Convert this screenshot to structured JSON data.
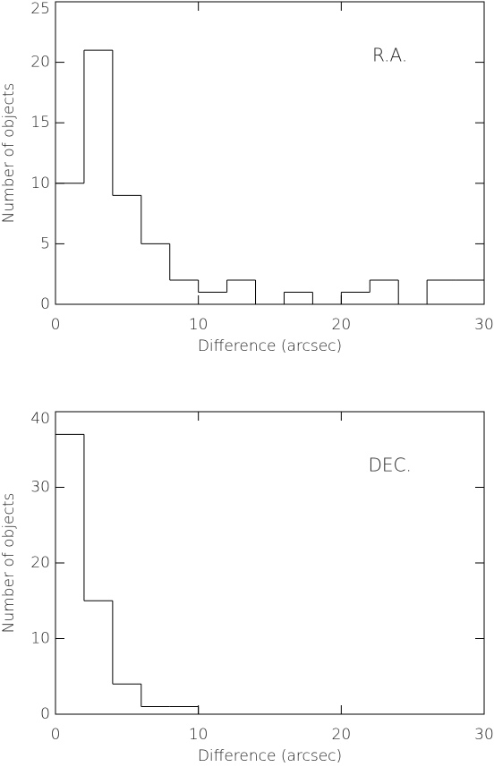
{
  "chart_data": [
    {
      "type": "histogram",
      "annotation": "R.A.",
      "xlabel": "Difference (arcsec)",
      "ylabel": "Number of objects",
      "color": "#000000",
      "bins": [
        0,
        2,
        4,
        6,
        8,
        10,
        12,
        14,
        16,
        18,
        20,
        22,
        24,
        26,
        28,
        30
      ],
      "values": [
        10,
        21,
        9,
        5,
        2,
        1,
        2,
        0,
        1,
        0,
        1,
        2,
        0,
        2,
        2
      ],
      "xlim": [
        0,
        30
      ],
      "xticks": [
        0,
        10,
        20,
        30
      ],
      "ylim": [
        0,
        25
      ],
      "yticks": [
        0,
        5,
        10,
        15,
        20,
        25
      ]
    },
    {
      "type": "histogram",
      "annotation": "DEC.",
      "xlabel": "Difference (arcsec)",
      "ylabel": "Number of objects",
      "color": "#000000",
      "bins": [
        0,
        2,
        4,
        6,
        8,
        10,
        12,
        14,
        16,
        18,
        20,
        22,
        24,
        26,
        28,
        30
      ],
      "values": [
        37,
        15,
        4,
        1,
        1,
        0,
        0,
        0,
        0,
        0,
        0,
        0,
        0,
        0,
        0
      ],
      "xlim": [
        0,
        30
      ],
      "xticks": [
        0,
        10,
        20,
        30
      ],
      "ylim": [
        0,
        40
      ],
      "yticks": [
        0,
        10,
        20,
        30,
        40
      ]
    }
  ]
}
